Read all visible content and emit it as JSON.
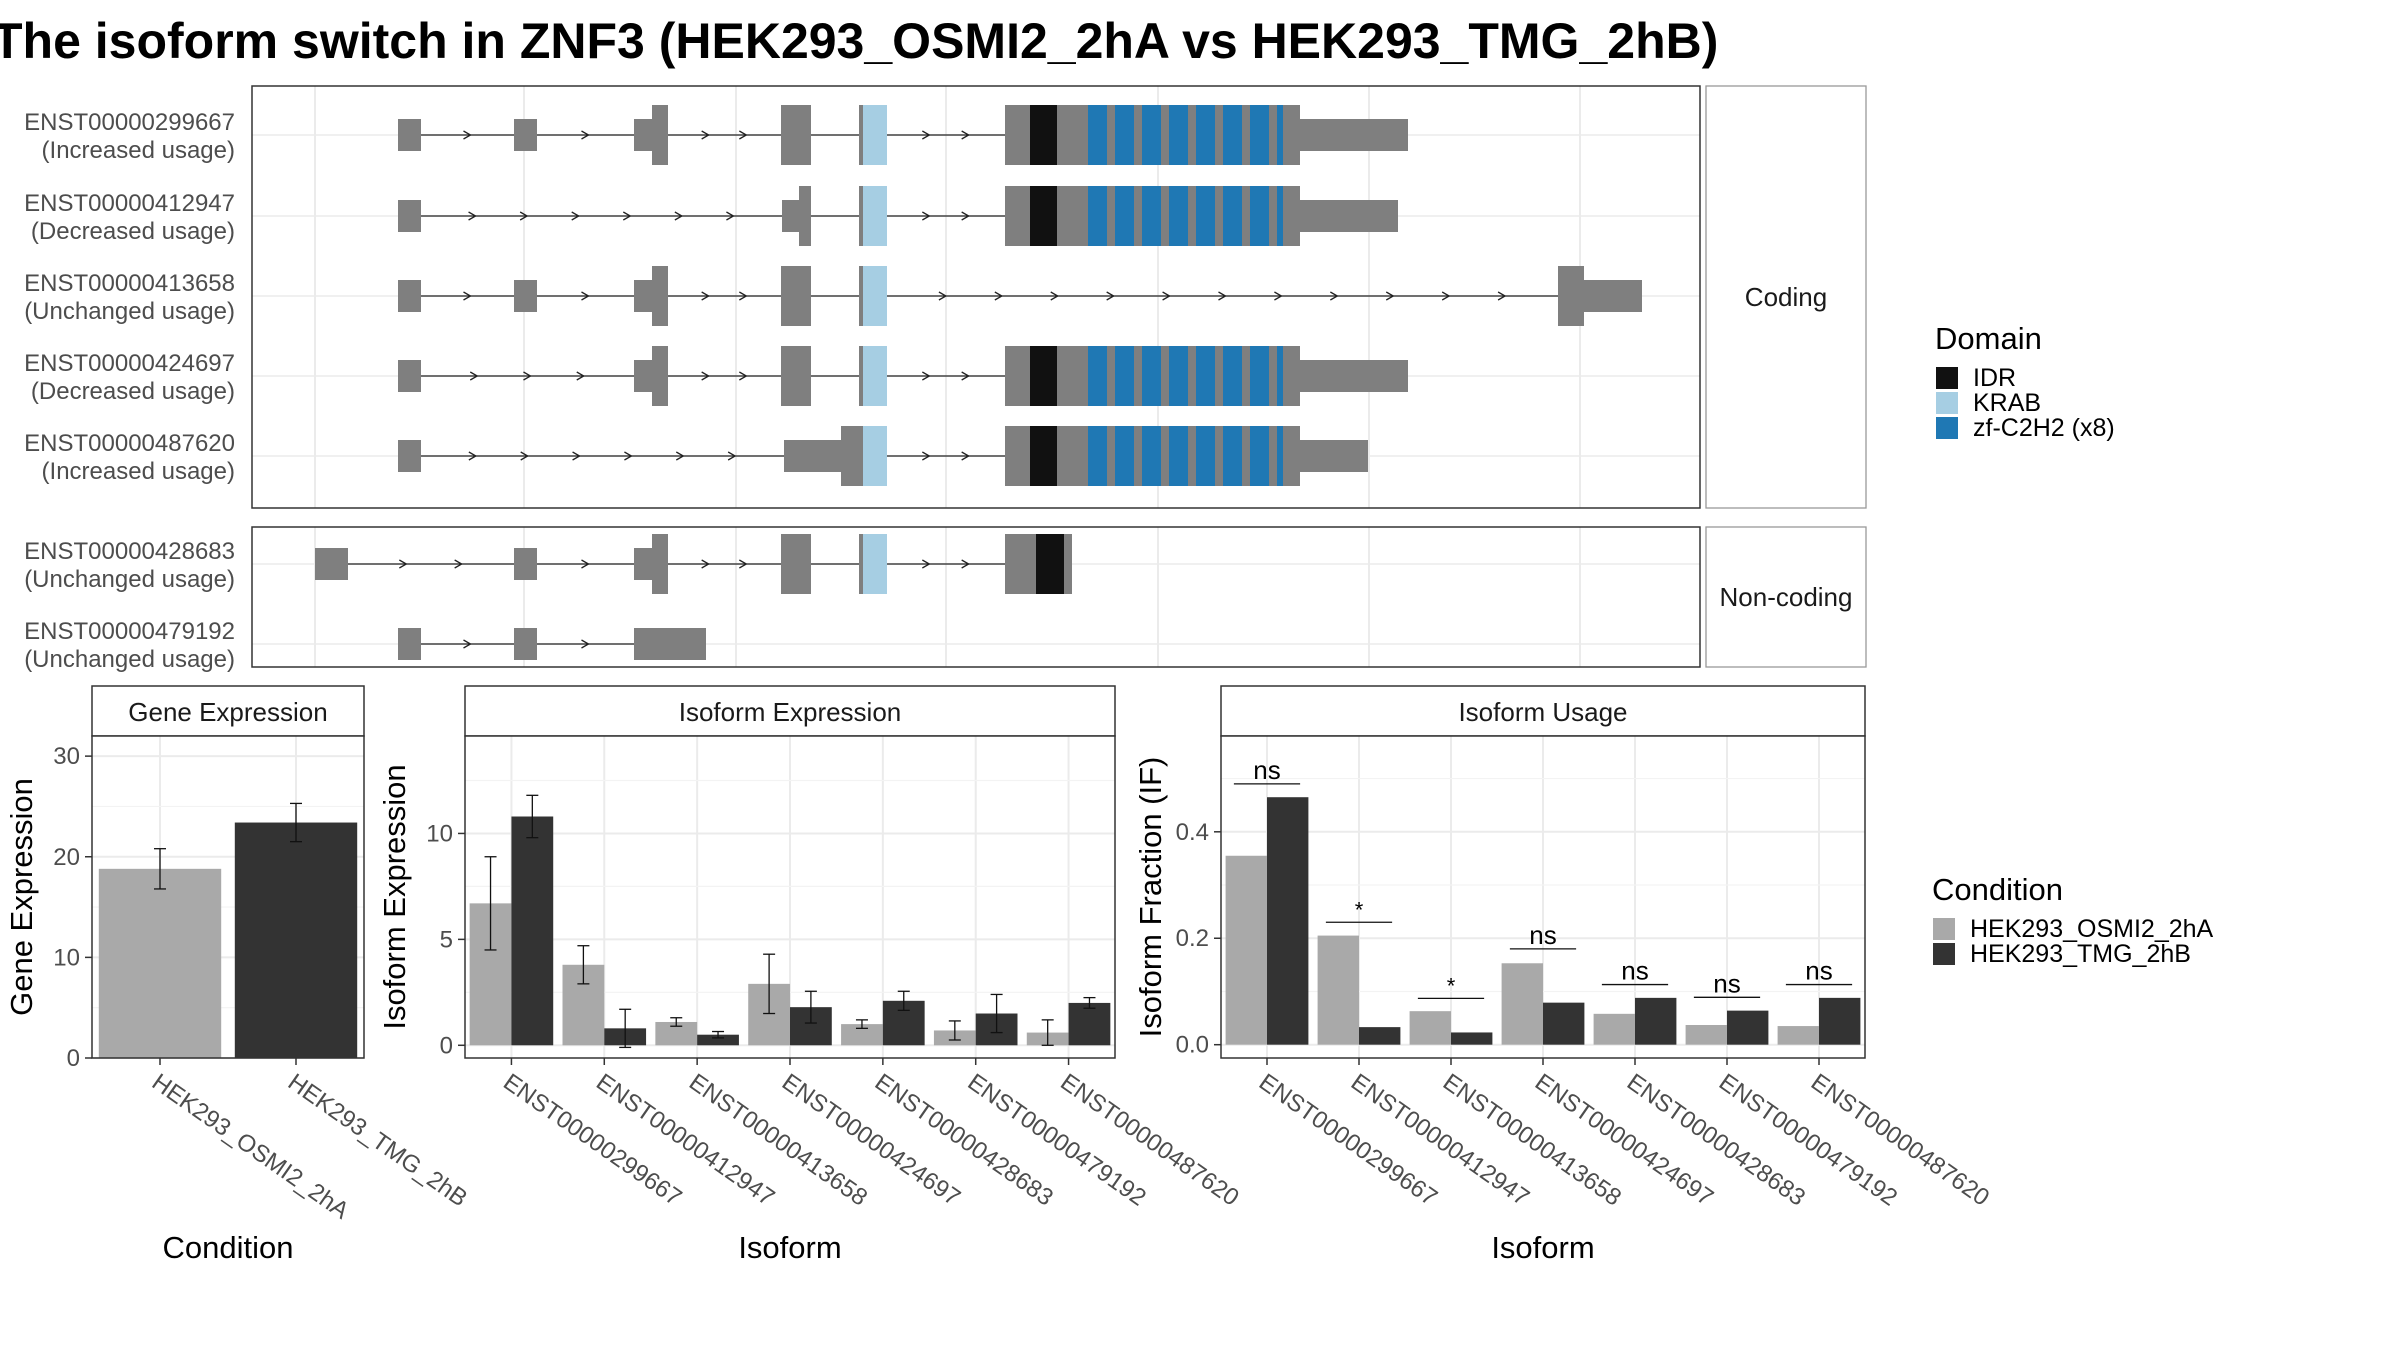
{
  "title": "The isoform switch in ZNF3 (HEK293_OSMI2_2hA vs HEK293_TMG_2hB)",
  "colors": {
    "exon": "#7f7f7f",
    "idr": "#111111",
    "krab": "#a6cee3",
    "zf": "#1f78b4",
    "cond_a": "#a9a9a9",
    "cond_b": "#333333",
    "grid": "#ebebeb",
    "strip": "#ffffff"
  },
  "tracks": {
    "facets": [
      {
        "label": "Coding",
        "transcripts": [
          {
            "id": "ENST00000299667",
            "usage": "(Increased usage)"
          },
          {
            "id": "ENST00000412947",
            "usage": "(Decreased usage)"
          },
          {
            "id": "ENST00000413658",
            "usage": "(Unchanged usage)"
          },
          {
            "id": "ENST00000424697",
            "usage": "(Decreased usage)"
          },
          {
            "id": "ENST00000487620",
            "usage": "(Increased usage)"
          }
        ]
      },
      {
        "label": "Non-coding",
        "transcripts": [
          {
            "id": "ENST00000428683",
            "usage": "(Unchanged usage)"
          },
          {
            "id": "ENST00000479192",
            "usage": "(Unchanged usage)"
          }
        ]
      }
    ]
  },
  "legend_domain": {
    "title": "Domain",
    "items": [
      {
        "label": "IDR",
        "color": "#111111"
      },
      {
        "label": "KRAB",
        "color": "#a6cee3"
      },
      {
        "label": "zf-C2H2 (x8)",
        "color": "#1f78b4"
      }
    ]
  },
  "legend_condition": {
    "title": "Condition",
    "items": [
      {
        "label": "HEK293_OSMI2_2hA",
        "color": "#a9a9a9"
      },
      {
        "label": "HEK293_TMG_2hB",
        "color": "#333333"
      }
    ]
  },
  "chart_data": [
    {
      "type": "bar",
      "title": "Gene Expression",
      "xlabel": "Condition",
      "ylabel": "Gene Expression",
      "categories": [
        "HEK293_OSMI2_2hA",
        "HEK293_TMG_2hB"
      ],
      "values": [
        18.8,
        23.4
      ],
      "errors": [
        2.0,
        1.9
      ],
      "ylim": [
        0,
        32
      ],
      "yticks": [
        0,
        10,
        20,
        30
      ],
      "grid": true
    },
    {
      "type": "bar",
      "title": "Isoform Expression",
      "xlabel": "Isoform",
      "ylabel": "Isoform Expression",
      "categories": [
        "ENST00000299667",
        "ENST00000412947",
        "ENST00000413658",
        "ENST00000424697",
        "ENST00000428683",
        "ENST00000479192",
        "ENST00000487620"
      ],
      "series": [
        {
          "name": "HEK293_OSMI2_2hA",
          "values": [
            6.7,
            3.8,
            1.1,
            2.9,
            1.0,
            0.7,
            0.6
          ],
          "errors": [
            2.2,
            0.9,
            0.2,
            1.4,
            0.2,
            0.45,
            0.6
          ]
        },
        {
          "name": "HEK293_TMG_2hB",
          "values": [
            10.8,
            0.8,
            0.5,
            1.8,
            2.1,
            1.5,
            2.0
          ],
          "errors": [
            1.0,
            0.9,
            0.15,
            0.75,
            0.45,
            0.9,
            0.25
          ]
        }
      ],
      "ylim": [
        -0.6,
        14.6
      ],
      "yticks": [
        0,
        5,
        10
      ],
      "grid": true
    },
    {
      "type": "bar",
      "title": "Isoform Usage",
      "xlabel": "Isoform",
      "ylabel": "Isoform Fraction (IF)",
      "categories": [
        "ENST00000299667",
        "ENST00000412947",
        "ENST00000413658",
        "ENST00000424697",
        "ENST00000428683",
        "ENST00000479192",
        "ENST00000487620"
      ],
      "series": [
        {
          "name": "HEK293_OSMI2_2hA",
          "values": [
            0.355,
            0.205,
            0.063,
            0.153,
            0.058,
            0.037,
            0.035
          ]
        },
        {
          "name": "HEK293_TMG_2hB",
          "values": [
            0.465,
            0.033,
            0.023,
            0.079,
            0.088,
            0.064,
            0.088
          ]
        }
      ],
      "significance": [
        {
          "label": "ns",
          "y": 0.49
        },
        {
          "label": "*",
          "y": 0.23
        },
        {
          "label": "*",
          "y": 0.087
        },
        {
          "label": "ns",
          "y": 0.18
        },
        {
          "label": "ns",
          "y": 0.113
        },
        {
          "label": "ns",
          "y": 0.089
        },
        {
          "label": "ns",
          "y": 0.113
        }
      ],
      "ylim": [
        -0.025,
        0.58
      ],
      "yticks": [
        0.0,
        0.2,
        0.4
      ],
      "ytick_labels": [
        "0.0",
        "0.2",
        "0.4"
      ],
      "grid": true
    }
  ]
}
